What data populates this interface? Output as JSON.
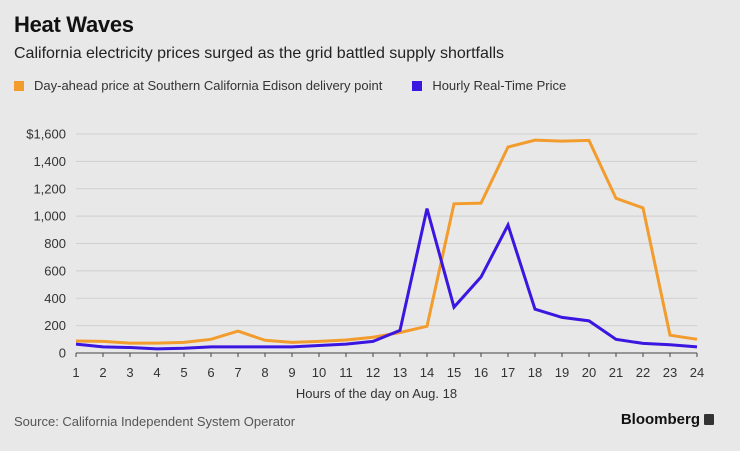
{
  "header": {
    "title": "Heat Waves",
    "subtitle": "California electricity prices surged as the grid battled supply shortfalls"
  },
  "legend": [
    {
      "label": "Day-ahead price at Southern California Edison delivery point",
      "color": "#f39c2e"
    },
    {
      "label": "Hourly Real-Time Price",
      "color": "#3a16e0"
    }
  ],
  "footer": {
    "source": "Source: California Independent System Operator",
    "brand": "Bloomberg"
  },
  "chart_data": {
    "type": "line",
    "title": "Heat Waves",
    "xlabel": "Hours of the day on Aug. 18",
    "ylabel": "",
    "x": [
      1,
      2,
      3,
      4,
      5,
      6,
      7,
      8,
      9,
      10,
      11,
      12,
      13,
      14,
      15,
      16,
      17,
      18,
      19,
      20,
      21,
      22,
      23,
      24
    ],
    "ylim": [
      0,
      1600
    ],
    "yticks": [
      0,
      200,
      400,
      600,
      800,
      1000,
      1200,
      1400,
      1600
    ],
    "ytick_labels": [
      "0",
      "200",
      "400",
      "600",
      "800",
      "1,000",
      "1,200",
      "1,400",
      "$1,600"
    ],
    "xtick_labels": [
      "1",
      "2",
      "3",
      "4",
      "5",
      "6",
      "7",
      "8",
      "9",
      "10",
      "11",
      "12",
      "13",
      "14",
      "15",
      "16",
      "17",
      "18",
      "19",
      "20",
      "21",
      "22",
      "23",
      "24"
    ],
    "grid": true,
    "series": [
      {
        "name": "Day-ahead price at Southern California Edison delivery point",
        "color": "#f39c2e",
        "values": [
          88,
          85,
          72,
          72,
          78,
          100,
          160,
          93,
          78,
          85,
          95,
          115,
          150,
          195,
          1090,
          1095,
          1505,
          1555,
          1548,
          1553,
          1130,
          1060,
          130,
          100
        ]
      },
      {
        "name": "Hourly Real-Time Price",
        "color": "#3a16e0",
        "values": [
          65,
          45,
          40,
          30,
          35,
          45,
          45,
          45,
          45,
          55,
          65,
          85,
          165,
          1055,
          335,
          555,
          935,
          320,
          260,
          235,
          100,
          70,
          60,
          45
        ]
      }
    ]
  }
}
